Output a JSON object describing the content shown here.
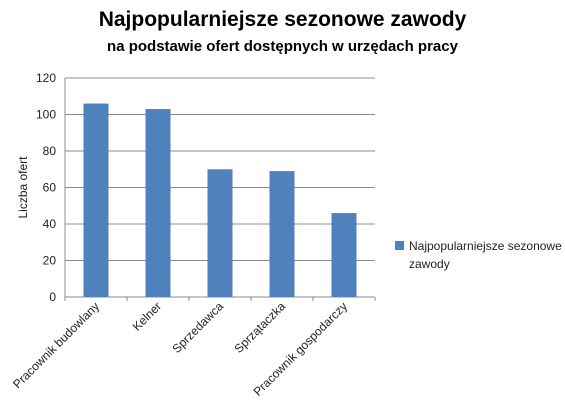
{
  "chart_data": {
    "type": "bar",
    "title": "Najpopularniejsze sezonowe zawody",
    "subtitle": "na podstawie ofert dostępnych w urzędach pracy",
    "xlabel": "",
    "ylabel": "Liczba ofert",
    "ylim": [
      0,
      120
    ],
    "yticks": [
      0,
      20,
      40,
      60,
      80,
      100,
      120
    ],
    "categories": [
      "Pracownik budowlany",
      "Kelner",
      "Sprzedawca",
      "Sprzątaczka",
      "Pracownik gospodarczy"
    ],
    "series": [
      {
        "name": "Najpopularniejsze sezonowe zawody",
        "values": [
          106,
          103,
          70,
          69,
          46
        ],
        "color": "#4F81BD"
      }
    ],
    "grid": true,
    "legend_position": "right"
  }
}
